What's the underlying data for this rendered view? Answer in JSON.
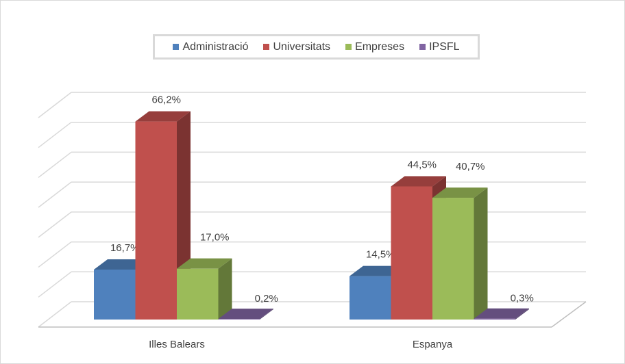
{
  "chart_data": {
    "type": "bar",
    "style": "3d-clustered-column",
    "categories": [
      "Illes Balears",
      "Espanya"
    ],
    "series": [
      {
        "name": "Administració",
        "values": [
          16.7,
          14.5
        ],
        "labels": [
          "16,7%",
          "14,5%"
        ],
        "color": "#4f81bd"
      },
      {
        "name": "Universitats",
        "values": [
          66.2,
          44.5
        ],
        "labels": [
          "66,2%",
          "44,5%"
        ],
        "color": "#c0504d"
      },
      {
        "name": "Empreses",
        "values": [
          17.0,
          40.7
        ],
        "labels": [
          "17,0%",
          "40,7%"
        ],
        "color": "#9bbb59"
      },
      {
        "name": "IPSFL",
        "values": [
          0.2,
          0.3
        ],
        "labels": [
          "0,2%",
          "0,3%"
        ],
        "color": "#8064a2"
      }
    ],
    "ylim": [
      0,
      70
    ],
    "grid": true,
    "legend": "top",
    "title": "",
    "xlabel": "",
    "ylabel": ""
  }
}
